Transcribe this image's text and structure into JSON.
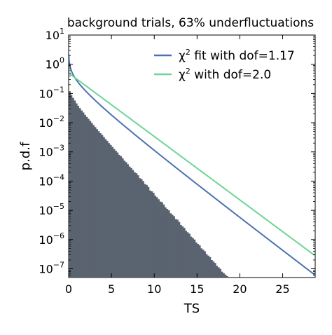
{
  "chart_data": {
    "type": "histogram+line",
    "title": "background trials, 63% underfluctuations",
    "xlabel": "TS",
    "ylabel": "p.d.f",
    "xlim": [
      0,
      28.8
    ],
    "ylim_exp": [
      -7.3,
      1
    ],
    "y_scale": "log",
    "x_ticks": [
      0,
      5,
      10,
      15,
      20,
      25
    ],
    "y_ticks_exp": [
      1,
      0,
      -1,
      -2,
      -3,
      -4,
      -5,
      -6,
      -7
    ],
    "legend_placement": "top-right",
    "legend": [
      {
        "label_main": "χ",
        "label_sup": "2",
        "label_rest": " fit with dof=1.17",
        "color": "#4c72b0"
      },
      {
        "label_main": "χ",
        "label_sup": "2",
        "label_rest": " with dof=2.0",
        "color": "#6fd498"
      }
    ],
    "series": [
      {
        "kind": "line",
        "dof": 1.17,
        "color": "#4c72b0"
      },
      {
        "kind": "line",
        "dof": 2.0,
        "color": "#6fd498"
      }
    ],
    "histogram": {
      "color": "#5a6370",
      "bin_width": 0.2,
      "bins": [
        [
          0.0,
          -0.92
        ],
        [
          0.2,
          -1.05
        ],
        [
          0.4,
          -1.15
        ],
        [
          0.6,
          -1.24
        ],
        [
          0.8,
          -1.34
        ],
        [
          1.0,
          -1.42
        ],
        [
          1.2,
          -1.5
        ],
        [
          1.4,
          -1.58
        ],
        [
          1.6,
          -1.65
        ],
        [
          1.8,
          -1.73
        ],
        [
          2.0,
          -1.8
        ],
        [
          2.2,
          -1.87
        ],
        [
          2.4,
          -1.94
        ],
        [
          2.6,
          -2.01
        ],
        [
          2.8,
          -2.08
        ],
        [
          3.0,
          -2.15
        ],
        [
          3.2,
          -2.22
        ],
        [
          3.4,
          -2.29
        ],
        [
          3.6,
          -2.36
        ],
        [
          3.8,
          -2.42
        ],
        [
          4.0,
          -2.49
        ],
        [
          4.2,
          -2.56
        ],
        [
          4.4,
          -2.62
        ],
        [
          4.6,
          -2.7
        ],
        [
          4.8,
          -2.76
        ],
        [
          5.0,
          -2.83
        ],
        [
          5.2,
          -2.9
        ],
        [
          5.4,
          -2.96
        ],
        [
          5.6,
          -3.02
        ],
        [
          5.8,
          -3.1
        ],
        [
          6.0,
          -3.15
        ],
        [
          6.2,
          -3.22
        ],
        [
          6.4,
          -3.3
        ],
        [
          6.6,
          -3.35
        ],
        [
          6.8,
          -3.42
        ],
        [
          7.0,
          -3.5
        ],
        [
          7.2,
          -3.55
        ],
        [
          7.4,
          -3.62
        ],
        [
          7.6,
          -3.7
        ],
        [
          7.8,
          -3.73
        ],
        [
          8.0,
          -3.8
        ],
        [
          8.2,
          -3.9
        ],
        [
          8.4,
          -3.93
        ],
        [
          8.6,
          -4.0
        ],
        [
          8.8,
          -4.1
        ],
        [
          9.0,
          -4.13
        ],
        [
          9.2,
          -4.2
        ],
        [
          9.4,
          -4.32
        ],
        [
          9.6,
          -4.35
        ],
        [
          9.8,
          -4.4
        ],
        [
          10.0,
          -4.5
        ],
        [
          10.2,
          -4.55
        ],
        [
          10.4,
          -4.62
        ],
        [
          10.6,
          -4.7
        ],
        [
          10.8,
          -4.72
        ],
        [
          11.0,
          -4.8
        ],
        [
          11.2,
          -4.9
        ],
        [
          11.4,
          -4.95
        ],
        [
          11.6,
          -5.0
        ],
        [
          11.8,
          -5.1
        ],
        [
          12.0,
          -5.15
        ],
        [
          12.2,
          -5.2
        ],
        [
          12.4,
          -5.3
        ],
        [
          12.6,
          -5.32
        ],
        [
          12.8,
          -5.4
        ],
        [
          13.0,
          -5.5
        ],
        [
          13.2,
          -5.55
        ],
        [
          13.4,
          -5.6
        ],
        [
          13.6,
          -5.7
        ],
        [
          13.8,
          -5.75
        ],
        [
          14.0,
          -5.8
        ],
        [
          14.2,
          -5.9
        ],
        [
          14.4,
          -5.95
        ],
        [
          14.6,
          -6.0
        ],
        [
          14.8,
          -6.1
        ],
        [
          15.0,
          -6.15
        ],
        [
          15.2,
          -6.2
        ],
        [
          15.4,
          -6.3
        ],
        [
          15.6,
          -6.35
        ],
        [
          15.8,
          -6.4
        ],
        [
          16.0,
          -6.5
        ],
        [
          16.2,
          -6.55
        ],
        [
          16.4,
          -6.6
        ],
        [
          16.6,
          -6.7
        ],
        [
          16.8,
          -6.75
        ],
        [
          17.0,
          -6.8
        ],
        [
          17.2,
          -6.9
        ],
        [
          17.4,
          -6.95
        ],
        [
          17.6,
          -7.0
        ],
        [
          17.8,
          -7.1
        ],
        [
          18.0,
          -7.15
        ],
        [
          18.2,
          -7.2
        ],
        [
          18.4,
          -7.25
        ]
      ]
    }
  }
}
